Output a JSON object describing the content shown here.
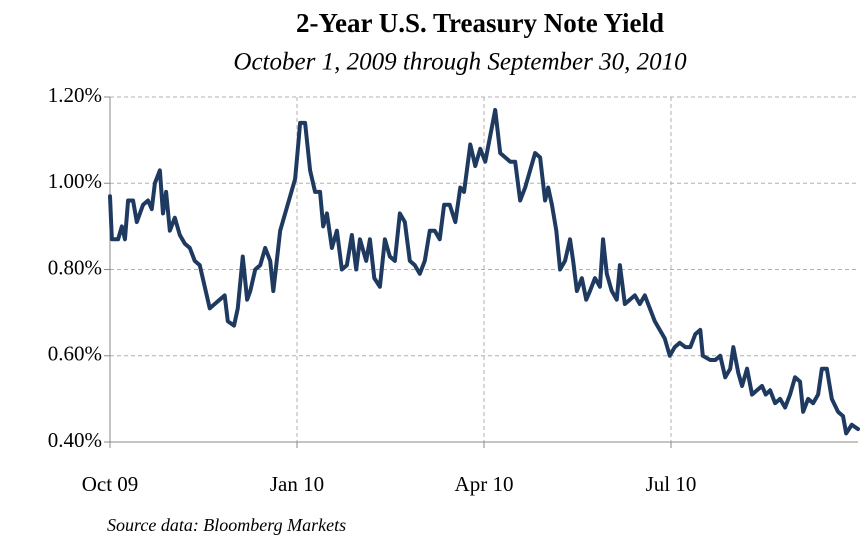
{
  "chart_data": {
    "type": "line",
    "title": "2-Year U.S. Treasury Note Yield",
    "subtitle": "October 1, 2009 through September 30, 2010",
    "source": "Source data: Bloomberg Markets",
    "xlim": [
      0,
      12
    ],
    "xticks": [
      {
        "value": 0,
        "label": "Oct 09"
      },
      {
        "value": 3,
        "label": "Jan 10"
      },
      {
        "value": 6,
        "label": "Apr 10"
      },
      {
        "value": 9,
        "label": "Jul 10"
      }
    ],
    "ylim": [
      0.4,
      1.2
    ],
    "yticks": [
      {
        "value": 0.4,
        "label": "0.40%"
      },
      {
        "value": 0.6,
        "label": "0.60%"
      },
      {
        "value": 0.8,
        "label": "0.80%"
      },
      {
        "value": 1.0,
        "label": "1.00%"
      },
      {
        "value": 1.2,
        "label": "1.20%"
      }
    ],
    "grid": true,
    "color": "#1f3a60",
    "x": [
      0.0,
      0.03,
      0.13,
      0.19,
      0.24,
      0.29,
      0.37,
      0.43,
      0.53,
      0.61,
      0.67,
      0.72,
      0.8,
      0.85,
      0.9,
      0.96,
      1.04,
      1.12,
      1.2,
      1.28,
      1.36,
      1.44,
      1.52,
      1.6,
      1.68,
      1.76,
      1.84,
      1.89,
      1.99,
      2.05,
      2.13,
      2.2,
      2.25,
      2.33,
      2.41,
      2.49,
      2.57,
      2.62,
      2.66,
      2.73,
      2.81,
      2.89,
      2.97,
      3.02,
      3.05,
      3.13,
      3.21,
      3.29,
      3.37,
      3.42,
      3.48,
      3.56,
      3.64,
      3.72,
      3.8,
      3.88,
      3.95,
      4.01,
      4.11,
      4.17,
      4.24,
      4.33,
      4.41,
      4.49,
      4.57,
      4.65,
      4.73,
      4.81,
      4.89,
      4.97,
      5.05,
      5.13,
      5.21,
      5.29,
      5.36,
      5.45,
      5.54,
      5.62,
      5.68,
      5.78,
      5.86,
      5.94,
      6.02,
      6.1,
      6.18,
      6.26,
      6.34,
      6.42,
      6.5,
      6.58,
      6.66,
      6.74,
      6.82,
      6.9,
      6.98,
      7.03,
      7.09,
      7.16,
      7.22,
      7.3,
      7.38,
      7.43,
      7.49,
      7.57,
      7.64,
      7.7,
      7.78,
      7.86,
      7.91,
      7.97,
      8.05,
      8.13,
      8.18,
      8.26,
      8.34,
      8.42,
      8.5,
      8.58,
      8.66,
      8.74,
      8.82,
      8.9,
      8.98,
      9.06,
      9.14,
      9.23,
      9.31,
      9.39,
      9.47,
      9.51,
      9.63,
      9.71,
      9.79,
      9.87,
      9.95,
      10.0,
      10.08,
      10.14,
      10.22,
      10.3,
      10.38,
      10.46,
      10.52,
      10.59,
      10.67,
      10.75,
      10.83,
      10.91,
      10.99,
      11.07,
      11.12,
      11.2,
      11.28,
      11.36,
      11.42,
      11.5,
      11.58,
      11.68,
      11.76,
      11.81,
      11.9,
      12.0
    ],
    "values": [
      0.97,
      0.87,
      0.87,
      0.9,
      0.87,
      0.96,
      0.96,
      0.91,
      0.95,
      0.96,
      0.94,
      1.0,
      1.03,
      0.93,
      0.98,
      0.89,
      0.92,
      0.88,
      0.86,
      0.85,
      0.82,
      0.81,
      0.76,
      0.71,
      0.72,
      0.73,
      0.74,
      0.68,
      0.67,
      0.71,
      0.83,
      0.73,
      0.75,
      0.8,
      0.81,
      0.85,
      0.82,
      0.75,
      0.8,
      0.89,
      0.93,
      0.97,
      1.01,
      1.09,
      1.14,
      1.14,
      1.03,
      0.98,
      0.98,
      0.9,
      0.93,
      0.85,
      0.89,
      0.8,
      0.81,
      0.88,
      0.8,
      0.87,
      0.82,
      0.87,
      0.78,
      0.76,
      0.87,
      0.83,
      0.82,
      0.93,
      0.91,
      0.82,
      0.81,
      0.79,
      0.82,
      0.89,
      0.89,
      0.87,
      0.95,
      0.95,
      0.91,
      0.99,
      0.98,
      1.09,
      1.04,
      1.08,
      1.05,
      1.11,
      1.17,
      1.07,
      1.06,
      1.05,
      1.05,
      0.96,
      0.99,
      1.03,
      1.07,
      1.06,
      0.96,
      0.99,
      0.95,
      0.89,
      0.8,
      0.82,
      0.87,
      0.82,
      0.75,
      0.78,
      0.73,
      0.75,
      0.78,
      0.76,
      0.87,
      0.79,
      0.75,
      0.73,
      0.81,
      0.72,
      0.73,
      0.74,
      0.72,
      0.74,
      0.71,
      0.68,
      0.66,
      0.64,
      0.6,
      0.62,
      0.63,
      0.62,
      0.62,
      0.65,
      0.66,
      0.6,
      0.59,
      0.59,
      0.6,
      0.55,
      0.57,
      0.62,
      0.56,
      0.53,
      0.57,
      0.51,
      0.52,
      0.53,
      0.51,
      0.52,
      0.49,
      0.5,
      0.48,
      0.51,
      0.55,
      0.54,
      0.47,
      0.5,
      0.49,
      0.51,
      0.57,
      0.57,
      0.5,
      0.47,
      0.46,
      0.42,
      0.44,
      0.43
    ]
  }
}
